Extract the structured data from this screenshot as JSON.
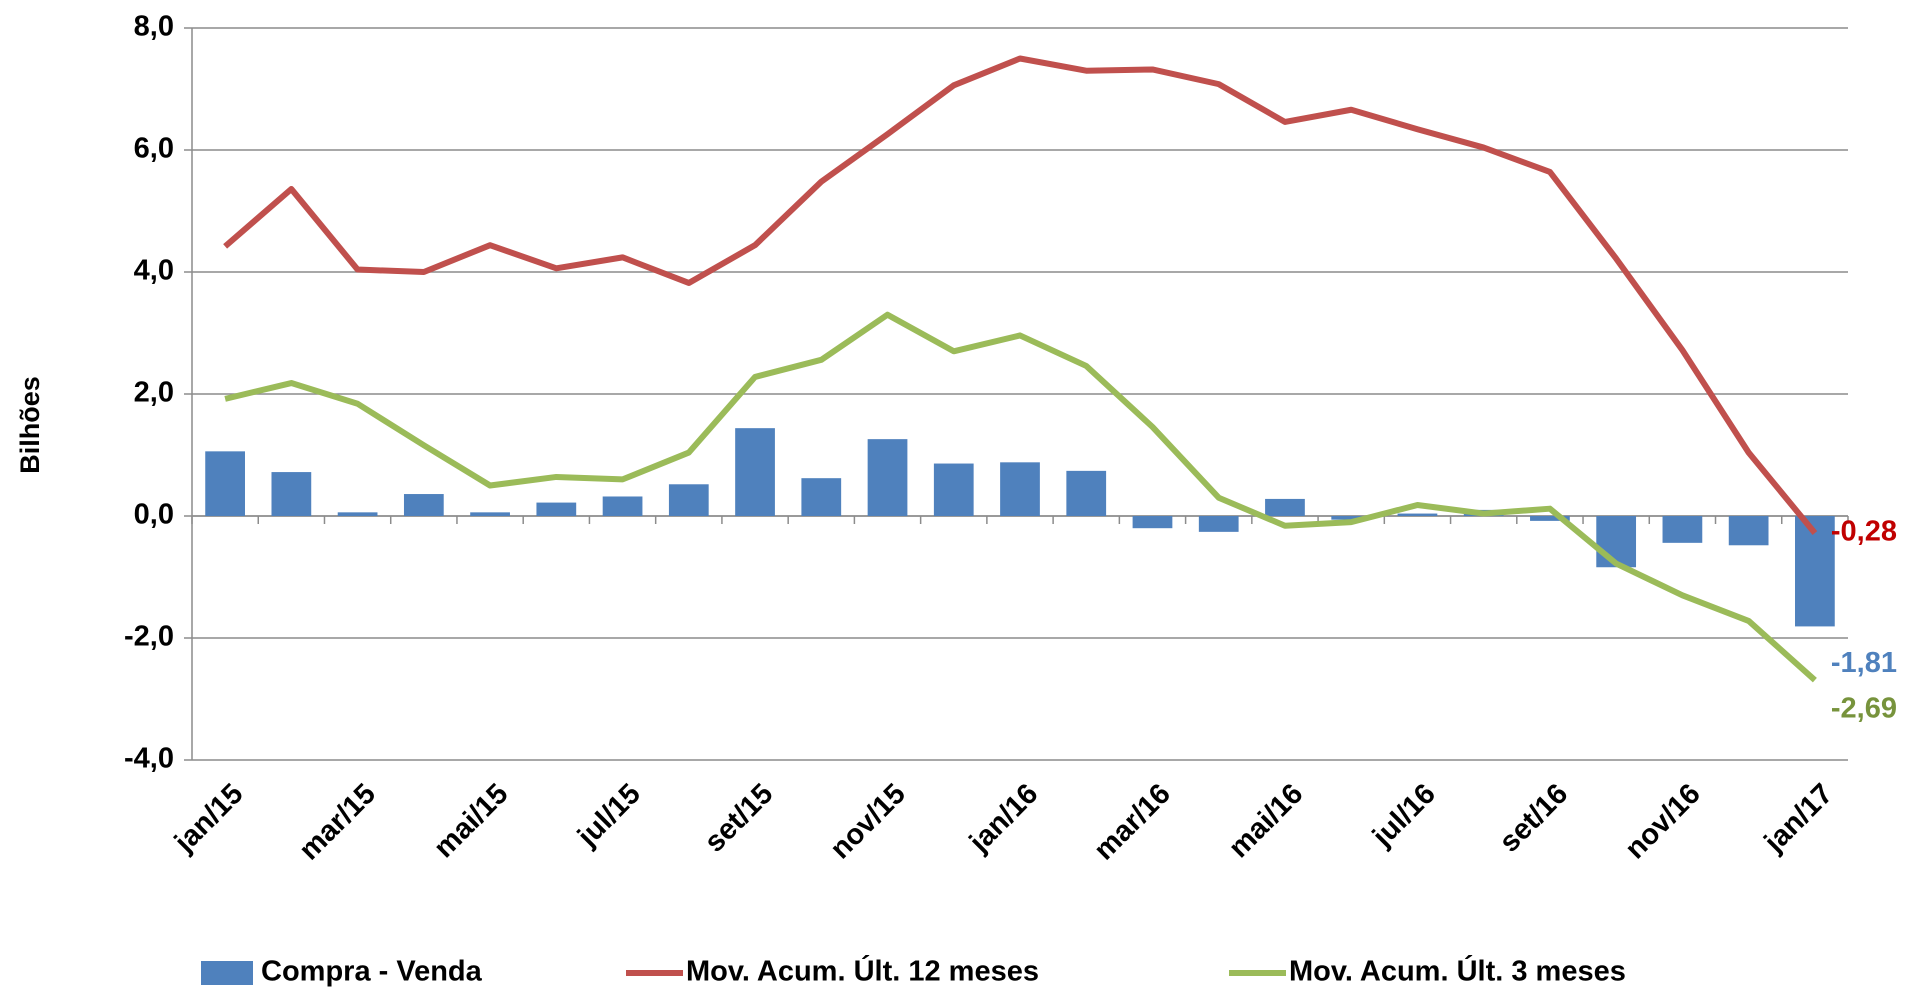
{
  "chart_data": {
    "type": "bar",
    "y_label": "Bilhões",
    "categories": [
      "jan/15",
      null,
      "mar/15",
      null,
      "mai/15",
      null,
      "jul/15",
      null,
      "set/15",
      null,
      "nov/15",
      null,
      "jan/16",
      null,
      "mar/16",
      null,
      "mai/16",
      null,
      "jul/16",
      null,
      "set/16",
      null,
      "nov/16",
      null,
      "jan/17"
    ],
    "series": [
      {
        "name": "Compra - Venda",
        "type": "bar",
        "color": "#4f81bd",
        "label_color": "#4f81bd",
        "values": [
          1.06,
          0.72,
          0.06,
          0.36,
          0.06,
          0.22,
          0.32,
          0.52,
          1.44,
          0.62,
          1.26,
          0.86,
          0.88,
          0.74,
          -0.2,
          -0.26,
          0.28,
          -0.06,
          0.04,
          0.1,
          -0.08,
          -0.84,
          -0.44,
          -0.48,
          -1.81
        ],
        "value_labels": [
          null,
          null,
          null,
          null,
          null,
          null,
          null,
          null,
          null,
          null,
          null,
          null,
          null,
          null,
          null,
          null,
          null,
          null,
          null,
          null,
          null,
          null,
          null,
          null,
          "-1,81"
        ]
      },
      {
        "name": "Mov. Acum. Últ. 12 meses",
        "type": "line",
        "color": "#c0504d",
        "label_color": "#c00000",
        "values": [
          4.42,
          5.36,
          4.04,
          4.0,
          4.44,
          4.06,
          4.24,
          3.82,
          4.44,
          5.48,
          6.26,
          7.06,
          7.5,
          7.3,
          7.32,
          7.08,
          6.46,
          6.66,
          6.34,
          6.04,
          5.64,
          4.22,
          2.72,
          1.04,
          -0.28
        ],
        "value_labels": [
          null,
          null,
          null,
          null,
          null,
          null,
          null,
          null,
          null,
          null,
          null,
          null,
          null,
          null,
          null,
          null,
          null,
          null,
          null,
          null,
          null,
          null,
          null,
          null,
          "-0,28"
        ]
      },
      {
        "name": "Mov. Acum. Últ. 3 meses",
        "type": "line",
        "color": "#9bbb59",
        "label_color": "#77933c",
        "values": [
          1.92,
          2.18,
          1.84,
          1.16,
          0.5,
          0.64,
          0.6,
          1.04,
          2.28,
          2.56,
          3.3,
          2.7,
          2.96,
          2.46,
          1.46,
          0.3,
          -0.16,
          -0.1,
          0.18,
          0.04,
          0.12,
          -0.78,
          -1.3,
          -1.72,
          -2.69
        ],
        "value_labels": [
          null,
          null,
          null,
          null,
          null,
          null,
          null,
          null,
          null,
          null,
          null,
          null,
          null,
          null,
          null,
          null,
          null,
          null,
          null,
          null,
          null,
          null,
          null,
          null,
          "-2,69"
        ]
      }
    ],
    "ylim": [
      -4,
      8
    ],
    "yticks": [
      {
        "value": -4,
        "label": "-4,0"
      },
      {
        "value": -2,
        "label": "-2,0"
      },
      {
        "value": 0,
        "label": "0,0"
      },
      {
        "value": 2,
        "label": "2,0"
      },
      {
        "value": 4,
        "label": "4,0"
      },
      {
        "value": 6,
        "label": "6,0"
      },
      {
        "value": 8,
        "label": "8,0"
      }
    ],
    "grid": true,
    "legend": "bottom"
  }
}
